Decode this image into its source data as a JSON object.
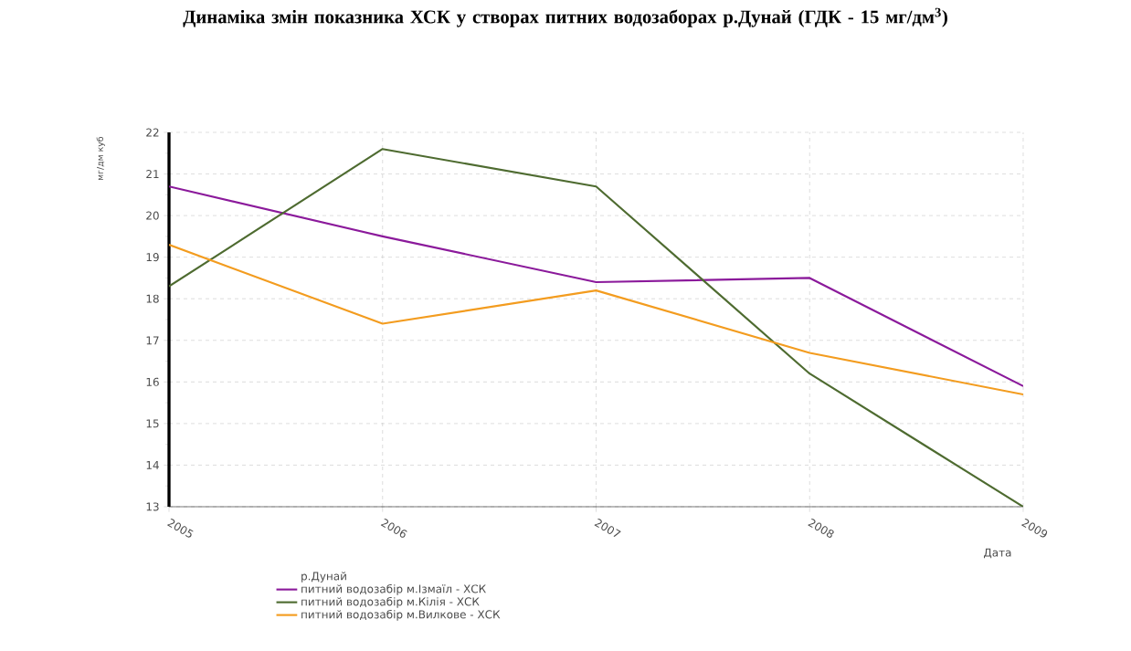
{
  "chart_data": {
    "type": "line",
    "title": "Динаміка змін показника ХСК у створах питних водозаборах  р.Дунай (ГДК - 15 мг/дм$^{3}$)",
    "xlabel": "Дата",
    "ylabel": "мг/дм куб",
    "legend_title": "р.Дунай",
    "categories": [
      "2005",
      "2006",
      "2007",
      "2008",
      "2009"
    ],
    "series": [
      {
        "name": "питний водозабір м.Ізмаїл  - ХСК",
        "color": "#8b1a9b",
        "values": [
          20.7,
          19.5,
          18.4,
          18.5,
          15.9
        ]
      },
      {
        "name": "питний водозабір м.Кілія  - ХСК",
        "color": "#4e6b30",
        "values": [
          18.3,
          21.6,
          20.7,
          16.2,
          13.0
        ]
      },
      {
        "name": "питний водозабір м.Вилкове  - ХСК",
        "color": "#f39c1f",
        "values": [
          19.3,
          17.4,
          18.2,
          16.7,
          15.7
        ]
      }
    ],
    "ylim": [
      13,
      22
    ],
    "yticks": [
      13,
      14,
      15,
      16,
      17,
      18,
      19,
      20,
      21,
      22
    ],
    "grid": true,
    "legend": "bottom"
  }
}
